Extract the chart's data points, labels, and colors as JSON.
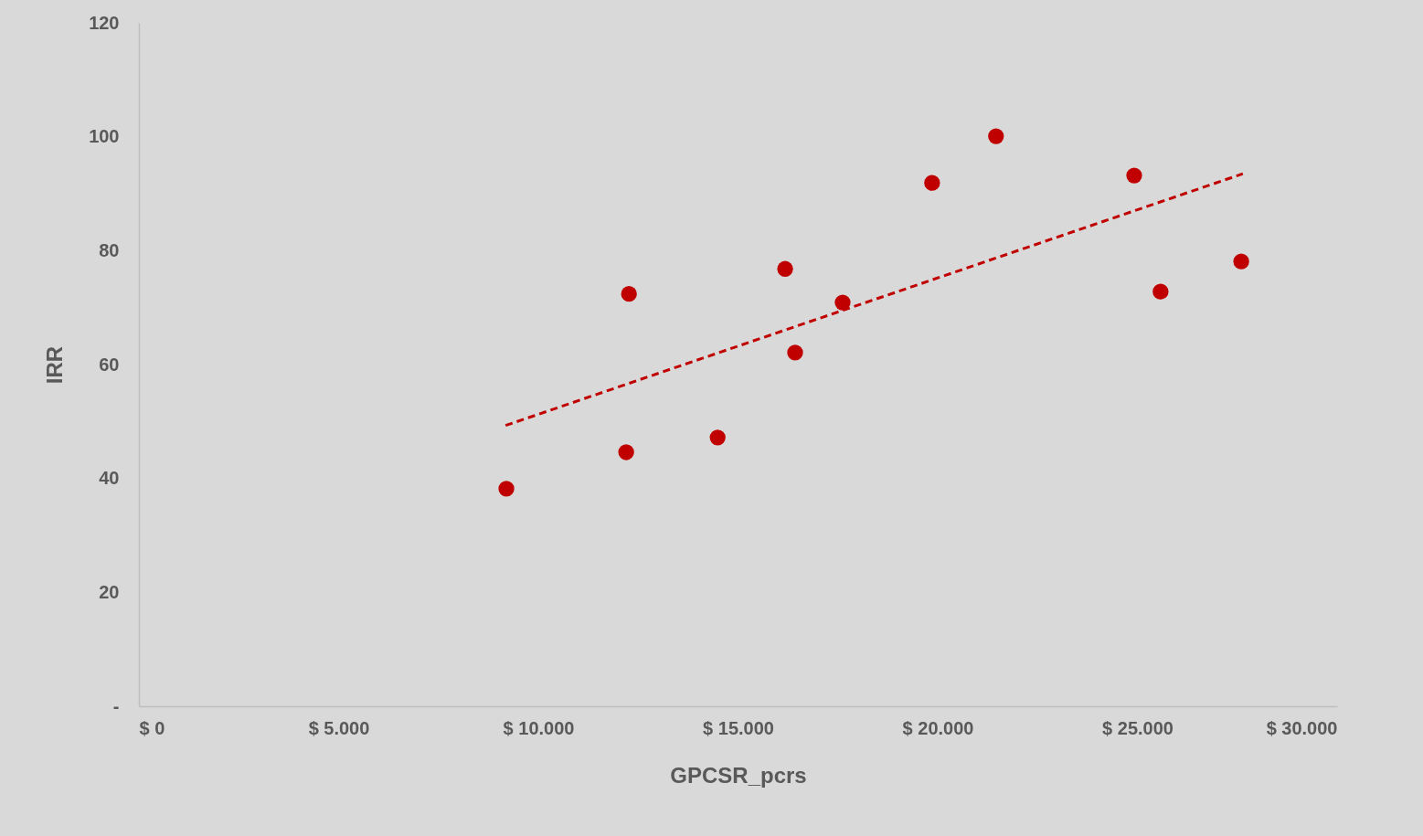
{
  "chart_data": {
    "type": "scatter",
    "xlabel": "GPCSR_pcrs",
    "ylabel": "IRR",
    "xlim": [
      0,
      30000
    ],
    "xticks": [
      {
        "value": 0,
        "label": "$ 0"
      },
      {
        "value": 5000,
        "label": "$ 5.000"
      },
      {
        "value": 10000,
        "label": "$ 10.000"
      },
      {
        "value": 15000,
        "label": "$ 15.000"
      },
      {
        "value": 20000,
        "label": "$ 20.000"
      },
      {
        "value": 25000,
        "label": "$ 25.000"
      },
      {
        "value": 30000,
        "label": "$ 30.000"
      }
    ],
    "ylim": [
      0,
      120
    ],
    "yticks": [
      {
        "value": 0,
        "label": "-"
      },
      20,
      40,
      60,
      80,
      100,
      120
    ],
    "series": [
      {
        "type": "scatter",
        "color": "#c00000",
        "marker": "circle",
        "x": [
          9200,
          12200,
          12270,
          14490,
          16180,
          16430,
          17620,
          19860,
          21460,
          24920,
          25580,
          27600
        ],
        "values": [
          38.2,
          44.6,
          72.4,
          47.2,
          76.8,
          62.1,
          70.9,
          91.9,
          100.1,
          93.2,
          72.8,
          78.1
        ]
      },
      {
        "type": "line",
        "color": "#c00000",
        "line_style": "dashed",
        "marker": "none",
        "x": [
          9180,
          27640
        ],
        "values": [
          49.3,
          93.5
        ]
      }
    ]
  }
}
